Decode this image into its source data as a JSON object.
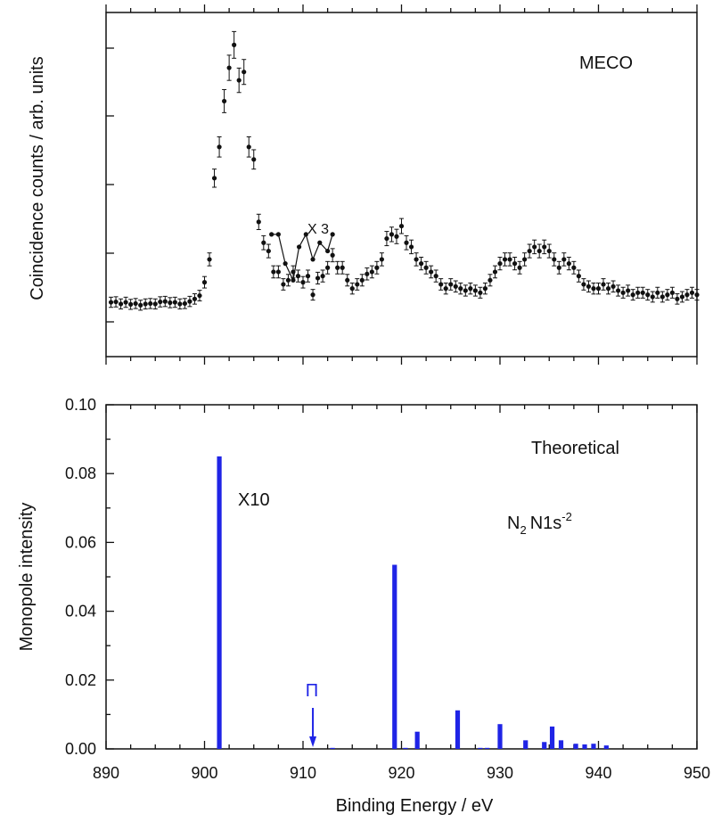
{
  "xlabel": "Binding Energy / eV",
  "chart_data": [
    {
      "type": "scatter",
      "title": "",
      "xlabel": "",
      "ylabel": "Coincidence counts / arb. units",
      "xlim": [
        890,
        950
      ],
      "yticks_labeled": false,
      "annotations": {
        "label": "MECO",
        "inset_scale": "X 3"
      },
      "series": [
        {
          "points": [
            [
              890.5,
              0.047
            ],
            [
              891.0,
              0.048
            ],
            [
              891.5,
              0.043
            ],
            [
              892.0,
              0.047
            ],
            [
              892.5,
              0.042
            ],
            [
              893.0,
              0.044
            ],
            [
              893.5,
              0.04
            ],
            [
              894.0,
              0.043
            ],
            [
              894.5,
              0.044
            ],
            [
              895.0,
              0.043
            ],
            [
              895.5,
              0.048
            ],
            [
              896.0,
              0.049
            ],
            [
              896.5,
              0.046
            ],
            [
              897.0,
              0.047
            ],
            [
              897.5,
              0.043
            ],
            [
              898.0,
              0.044
            ],
            [
              898.5,
              0.049
            ],
            [
              899.0,
              0.055
            ],
            [
              899.5,
              0.063
            ],
            [
              900.0,
              0.095
            ],
            [
              900.5,
              0.15
            ],
            [
              901.0,
              0.345
            ],
            [
              901.5,
              0.42
            ],
            [
              902.0,
              0.53
            ],
            [
              902.5,
              0.61
            ],
            [
              903.0,
              0.665
            ],
            [
              903.5,
              0.58
            ],
            [
              904.0,
              0.6
            ],
            [
              904.5,
              0.42
            ],
            [
              905.0,
              0.39
            ],
            [
              905.5,
              0.24
            ],
            [
              906.0,
              0.19
            ],
            [
              906.5,
              0.17
            ],
            [
              907.0,
              0.12
            ],
            [
              907.5,
              0.12
            ],
            [
              908.0,
              0.09
            ],
            [
              908.5,
              0.1
            ],
            [
              909.0,
              0.12
            ],
            [
              909.5,
              0.11
            ],
            [
              910.0,
              0.095
            ],
            [
              910.5,
              0.11
            ],
            [
              911.0,
              0.065
            ],
            [
              911.5,
              0.105
            ],
            [
              912.0,
              0.11
            ],
            [
              912.5,
              0.13
            ],
            [
              913.0,
              0.16
            ],
            [
              913.5,
              0.13
            ],
            [
              914.0,
              0.13
            ],
            [
              914.5,
              0.1
            ],
            [
              915.0,
              0.08
            ],
            [
              915.5,
              0.09
            ],
            [
              916.0,
              0.1
            ],
            [
              916.5,
              0.115
            ],
            [
              917.0,
              0.12
            ],
            [
              917.5,
              0.13
            ],
            [
              918.0,
              0.15
            ],
            [
              918.5,
              0.2
            ],
            [
              919.0,
              0.21
            ],
            [
              919.5,
              0.205
            ],
            [
              920.0,
              0.23
            ],
            [
              920.5,
              0.19
            ],
            [
              921.0,
              0.18
            ],
            [
              921.5,
              0.15
            ],
            [
              922.0,
              0.14
            ],
            [
              922.5,
              0.13
            ],
            [
              923.0,
              0.12
            ],
            [
              923.5,
              0.11
            ],
            [
              924.0,
              0.09
            ],
            [
              924.5,
              0.08
            ],
            [
              925.0,
              0.09
            ],
            [
              925.5,
              0.085
            ],
            [
              926.0,
              0.08
            ],
            [
              926.5,
              0.075
            ],
            [
              927.0,
              0.08
            ],
            [
              927.5,
              0.075
            ],
            [
              928.0,
              0.07
            ],
            [
              928.5,
              0.08
            ],
            [
              929.0,
              0.1
            ],
            [
              929.5,
              0.12
            ],
            [
              930.0,
              0.14
            ],
            [
              930.5,
              0.15
            ],
            [
              931.0,
              0.15
            ],
            [
              931.5,
              0.14
            ],
            [
              932.0,
              0.13
            ],
            [
              932.5,
              0.15
            ],
            [
              933.0,
              0.17
            ],
            [
              933.5,
              0.18
            ],
            [
              934.0,
              0.17
            ],
            [
              934.5,
              0.18
            ],
            [
              935.0,
              0.17
            ],
            [
              935.5,
              0.15
            ],
            [
              936.0,
              0.13
            ],
            [
              936.5,
              0.15
            ],
            [
              937.0,
              0.14
            ],
            [
              937.5,
              0.13
            ],
            [
              938.0,
              0.11
            ],
            [
              938.5,
              0.09
            ],
            [
              939.0,
              0.085
            ],
            [
              939.5,
              0.08
            ],
            [
              940.0,
              0.08
            ],
            [
              940.5,
              0.09
            ],
            [
              941.0,
              0.08
            ],
            [
              941.5,
              0.085
            ],
            [
              942.0,
              0.075
            ],
            [
              942.5,
              0.07
            ],
            [
              943.0,
              0.075
            ],
            [
              943.5,
              0.065
            ],
            [
              944.0,
              0.07
            ],
            [
              944.5,
              0.07
            ],
            [
              945.0,
              0.065
            ],
            [
              945.5,
              0.06
            ],
            [
              946.0,
              0.07
            ],
            [
              946.5,
              0.06
            ],
            [
              947.0,
              0.065
            ],
            [
              947.5,
              0.07
            ],
            [
              948.0,
              0.055
            ],
            [
              948.5,
              0.06
            ],
            [
              949.0,
              0.065
            ],
            [
              949.5,
              0.07
            ],
            [
              950.0,
              0.065
            ]
          ]
        },
        {
          "scale": "X 3",
          "points": [
            [
              906.8,
              0.21
            ],
            [
              907.5,
              0.21
            ],
            [
              908.2,
              0.14
            ],
            [
              909.0,
              0.1
            ],
            [
              909.6,
              0.18
            ],
            [
              910.3,
              0.21
            ],
            [
              911.0,
              0.15
            ],
            [
              911.7,
              0.19
            ],
            [
              912.5,
              0.17
            ],
            [
              913.0,
              0.21
            ]
          ]
        }
      ]
    },
    {
      "type": "bar",
      "title": "",
      "xlabel": "",
      "ylabel": "Monopole intensity",
      "xlim": [
        890,
        950
      ],
      "ylim": [
        0,
        0.1
      ],
      "xticks": [
        "890",
        "900",
        "910",
        "920",
        "930",
        "940",
        "950"
      ],
      "yticks": [
        "0.00",
        "0.02",
        "0.04",
        "0.06",
        "0.08",
        "0.10"
      ],
      "annotations": {
        "label": "Theoretical",
        "species": "N",
        "species_sub": "2",
        "core": "N1s",
        "core_sup": "-2",
        "scale": "X10",
        "pi_label": "Π",
        "pi_x": 911
      },
      "color": "#1f24e6",
      "sticks": [
        [
          901.5,
          0.085
        ],
        [
          919.3,
          0.0535
        ],
        [
          921.6,
          0.005
        ],
        [
          925.7,
          0.0112
        ],
        [
          930.0,
          0.0072
        ],
        [
          932.6,
          0.0025
        ],
        [
          934.5,
          0.002
        ],
        [
          935.3,
          0.0065
        ],
        [
          936.2,
          0.0025
        ],
        [
          937.7,
          0.0015
        ],
        [
          938.6,
          0.0013
        ],
        [
          939.5,
          0.0015
        ],
        [
          940.8,
          0.001
        ],
        [
          913.0,
          0.0003
        ],
        [
          920.4,
          0.0003
        ],
        [
          928.0,
          0.0003
        ],
        [
          928.7,
          0.0003
        ]
      ]
    }
  ]
}
